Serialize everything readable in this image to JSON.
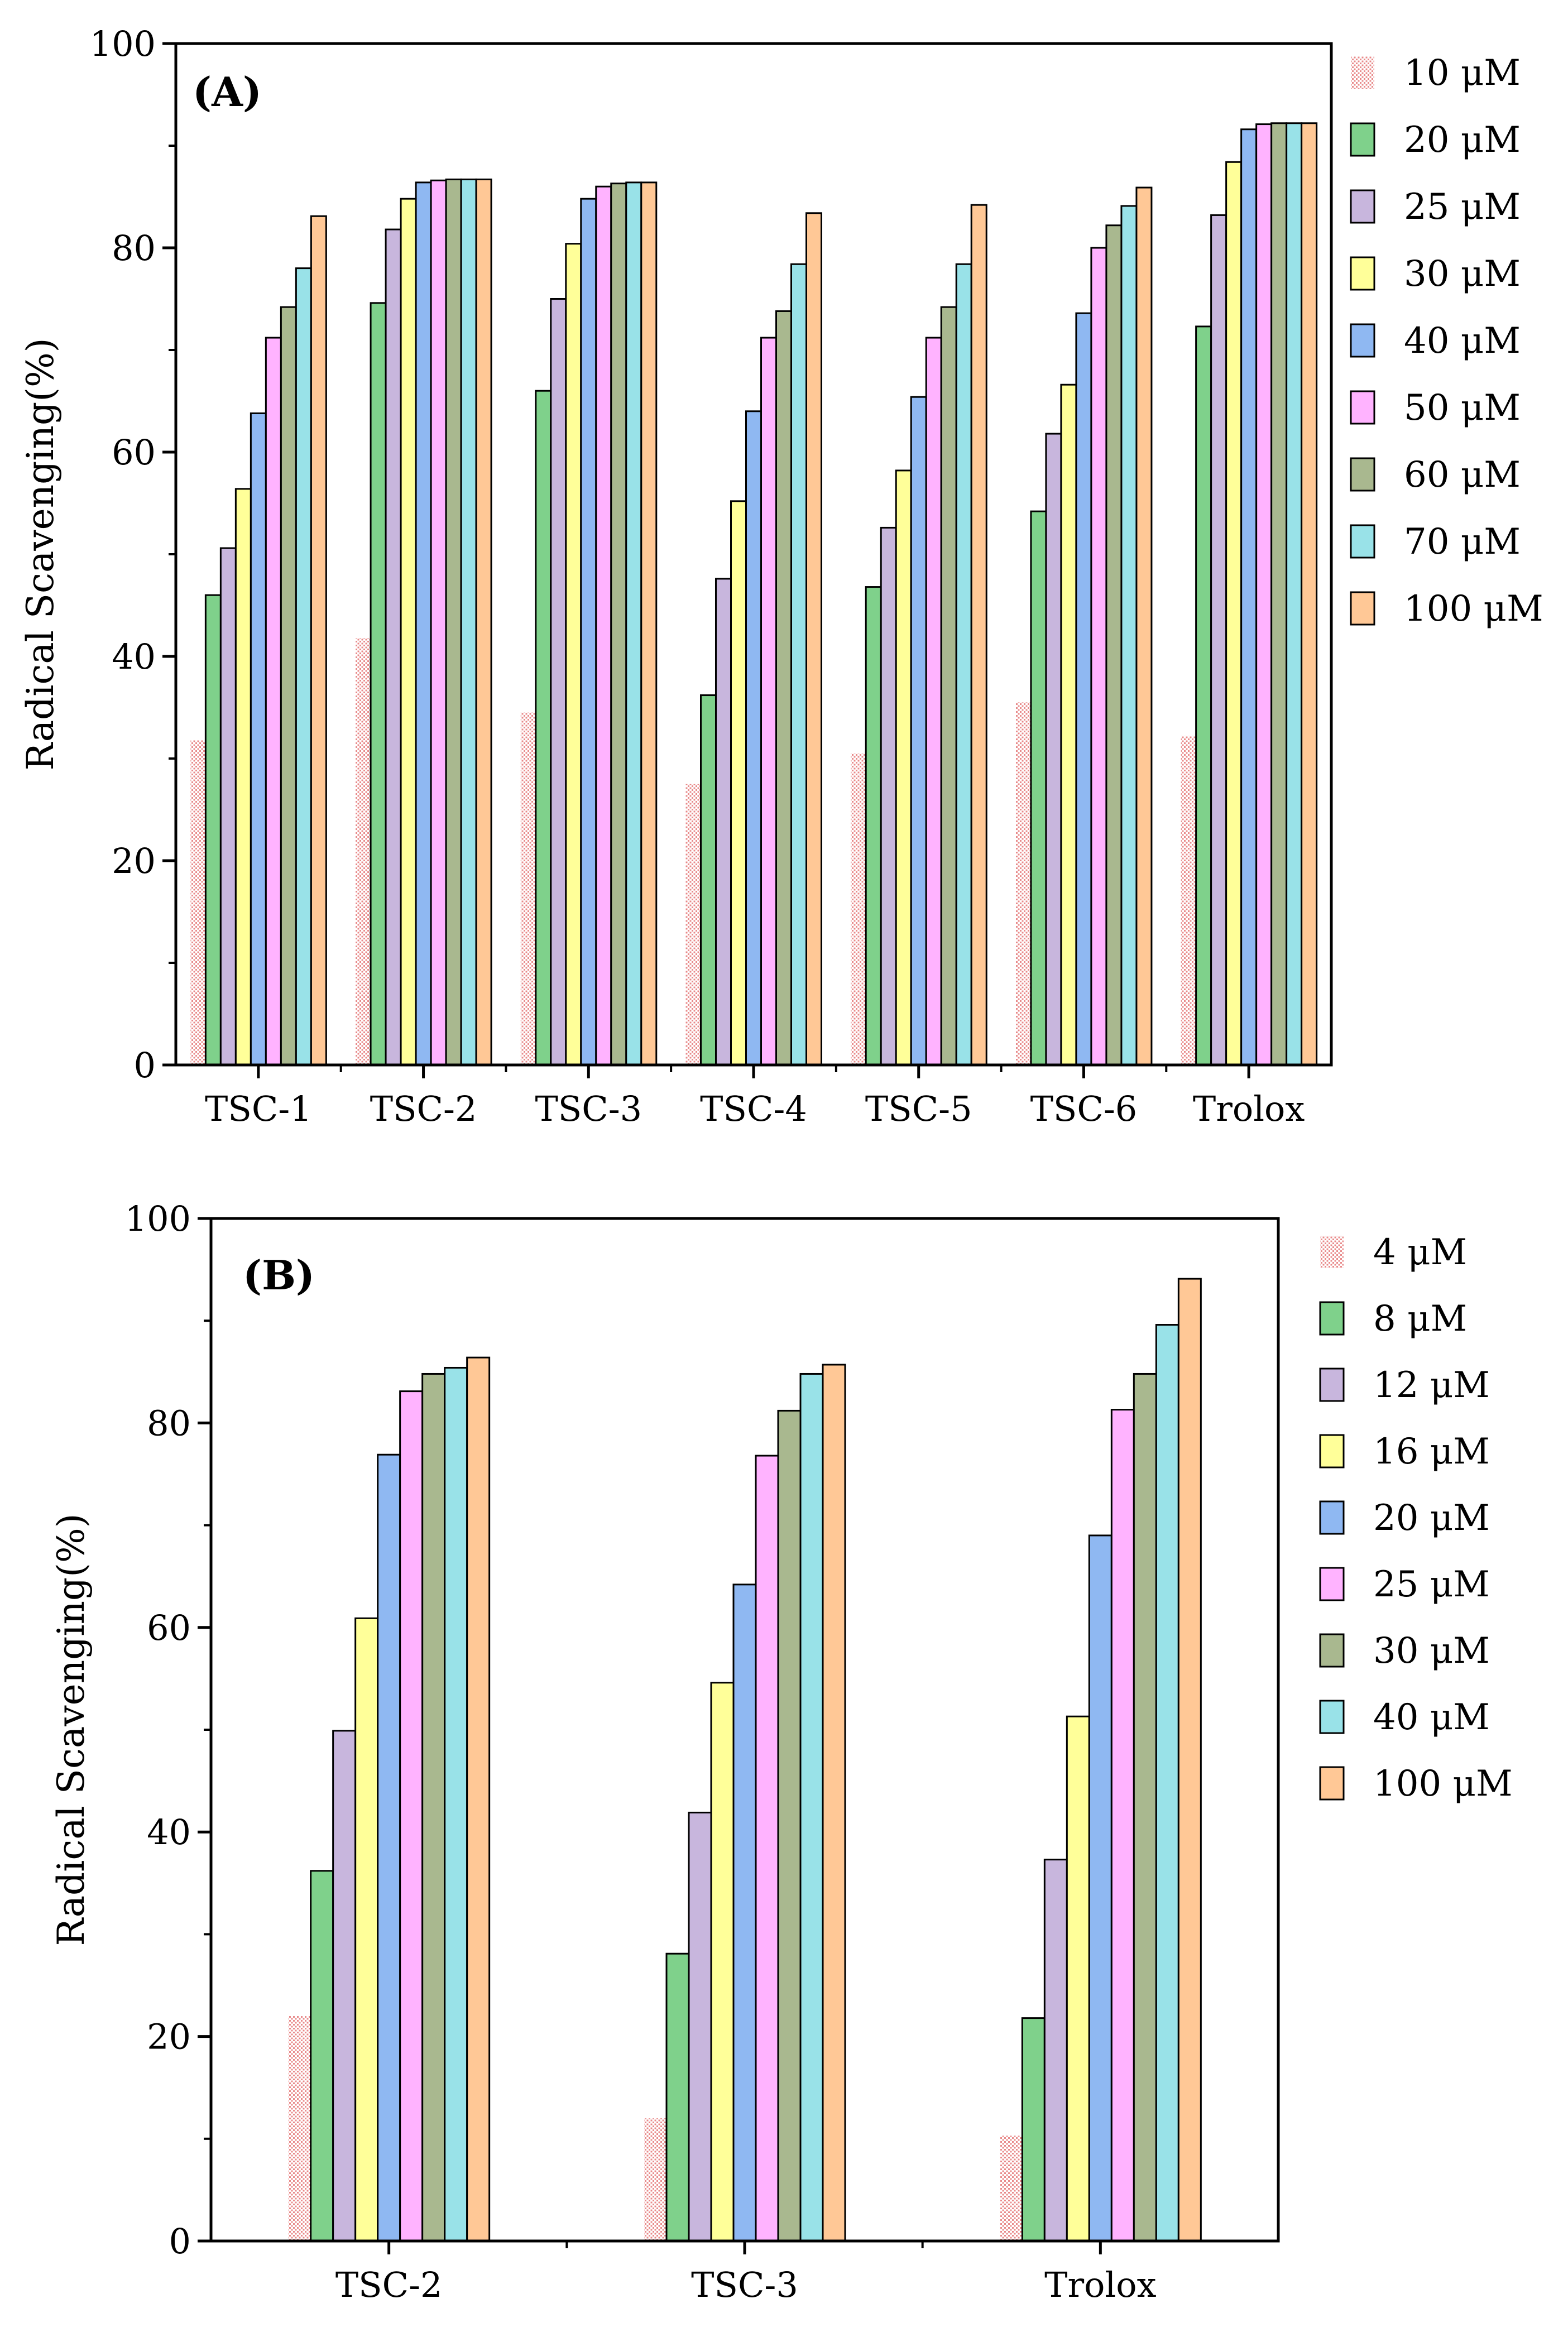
{
  "chart_data": [
    {
      "type": "bar",
      "panel_label": "(A)",
      "xlabel": "",
      "ylabel": "Radical Scavenging(%)",
      "ylim": [
        0,
        100
      ],
      "yticks": [
        "0",
        "20",
        "40",
        "60",
        "80",
        "100"
      ],
      "legend_position": "right",
      "categories": [
        "TSC-1",
        "TSC-2",
        "TSC-3",
        "TSC-4",
        "TSC-5",
        "TSC-6",
        "Trolox"
      ],
      "series": [
        {
          "name": "10 μM",
          "color": "#f4a6a6",
          "pattern": "dotted",
          "values": [
            31.8,
            41.8,
            34.5,
            27.5,
            30.5,
            35.5,
            32.2
          ]
        },
        {
          "name": "20 μM",
          "color": "#7fd18b",
          "values": [
            46.0,
            74.6,
            66.0,
            36.2,
            46.8,
            54.2,
            72.3
          ]
        },
        {
          "name": "25 μM",
          "color": "#c8b6dd",
          "values": [
            50.6,
            81.8,
            75.0,
            47.6,
            52.6,
            61.8,
            83.2
          ]
        },
        {
          "name": "30 μM",
          "color": "#ffff99",
          "values": [
            56.4,
            84.8,
            80.4,
            55.2,
            58.2,
            66.6,
            88.4
          ]
        },
        {
          "name": "40 μM",
          "color": "#8fb8f2",
          "values": [
            63.8,
            86.4,
            84.8,
            64.0,
            65.4,
            73.6,
            91.6
          ]
        },
        {
          "name": "50 μM",
          "color": "#ffb3ff",
          "values": [
            71.2,
            86.6,
            86.0,
            71.2,
            71.2,
            80.0,
            92.1
          ]
        },
        {
          "name": "60 μM",
          "color": "#a9b88f",
          "values": [
            74.2,
            86.7,
            86.3,
            73.8,
            74.2,
            82.2,
            92.2
          ]
        },
        {
          "name": "70 μM",
          "color": "#99e2e8",
          "values": [
            78.0,
            86.7,
            86.4,
            78.4,
            78.4,
            84.1,
            92.2
          ]
        },
        {
          "name": "100 μM",
          "color": "#ffc896",
          "values": [
            83.1,
            86.7,
            86.4,
            83.4,
            84.2,
            85.9,
            92.2
          ]
        }
      ]
    },
    {
      "type": "bar",
      "panel_label": "(B)",
      "xlabel": "",
      "ylabel": "Radical Scavenging(%)",
      "ylim": [
        0,
        100
      ],
      "yticks": [
        "0",
        "20",
        "40",
        "60",
        "80",
        "100"
      ],
      "legend_position": "right",
      "categories": [
        "TSC-2",
        "TSC-3",
        "Trolox"
      ],
      "series": [
        {
          "name": "4 μM",
          "color": "#f4a6a6",
          "pattern": "dotted",
          "values": [
            22.0,
            12.0,
            10.3
          ]
        },
        {
          "name": "8 μM",
          "color": "#7fd18b",
          "values": [
            36.2,
            28.1,
            21.8
          ]
        },
        {
          "name": "12 μM",
          "color": "#c8b6dd",
          "values": [
            49.9,
            41.9,
            37.3
          ]
        },
        {
          "name": "16 μM",
          "color": "#ffff99",
          "values": [
            60.9,
            54.6,
            51.3
          ]
        },
        {
          "name": "20 μM",
          "color": "#8fb8f2",
          "values": [
            76.9,
            64.2,
            69.0
          ]
        },
        {
          "name": "25 μM",
          "color": "#ffb3ff",
          "values": [
            83.1,
            76.8,
            81.3
          ]
        },
        {
          "name": "30 μM",
          "color": "#a9b88f",
          "values": [
            84.8,
            81.2,
            84.8
          ]
        },
        {
          "name": "40 μM",
          "color": "#99e2e8",
          "values": [
            85.4,
            84.8,
            89.6
          ]
        },
        {
          "name": "100 μM",
          "color": "#ffc896",
          "values": [
            86.4,
            85.7,
            94.1
          ]
        }
      ]
    }
  ]
}
